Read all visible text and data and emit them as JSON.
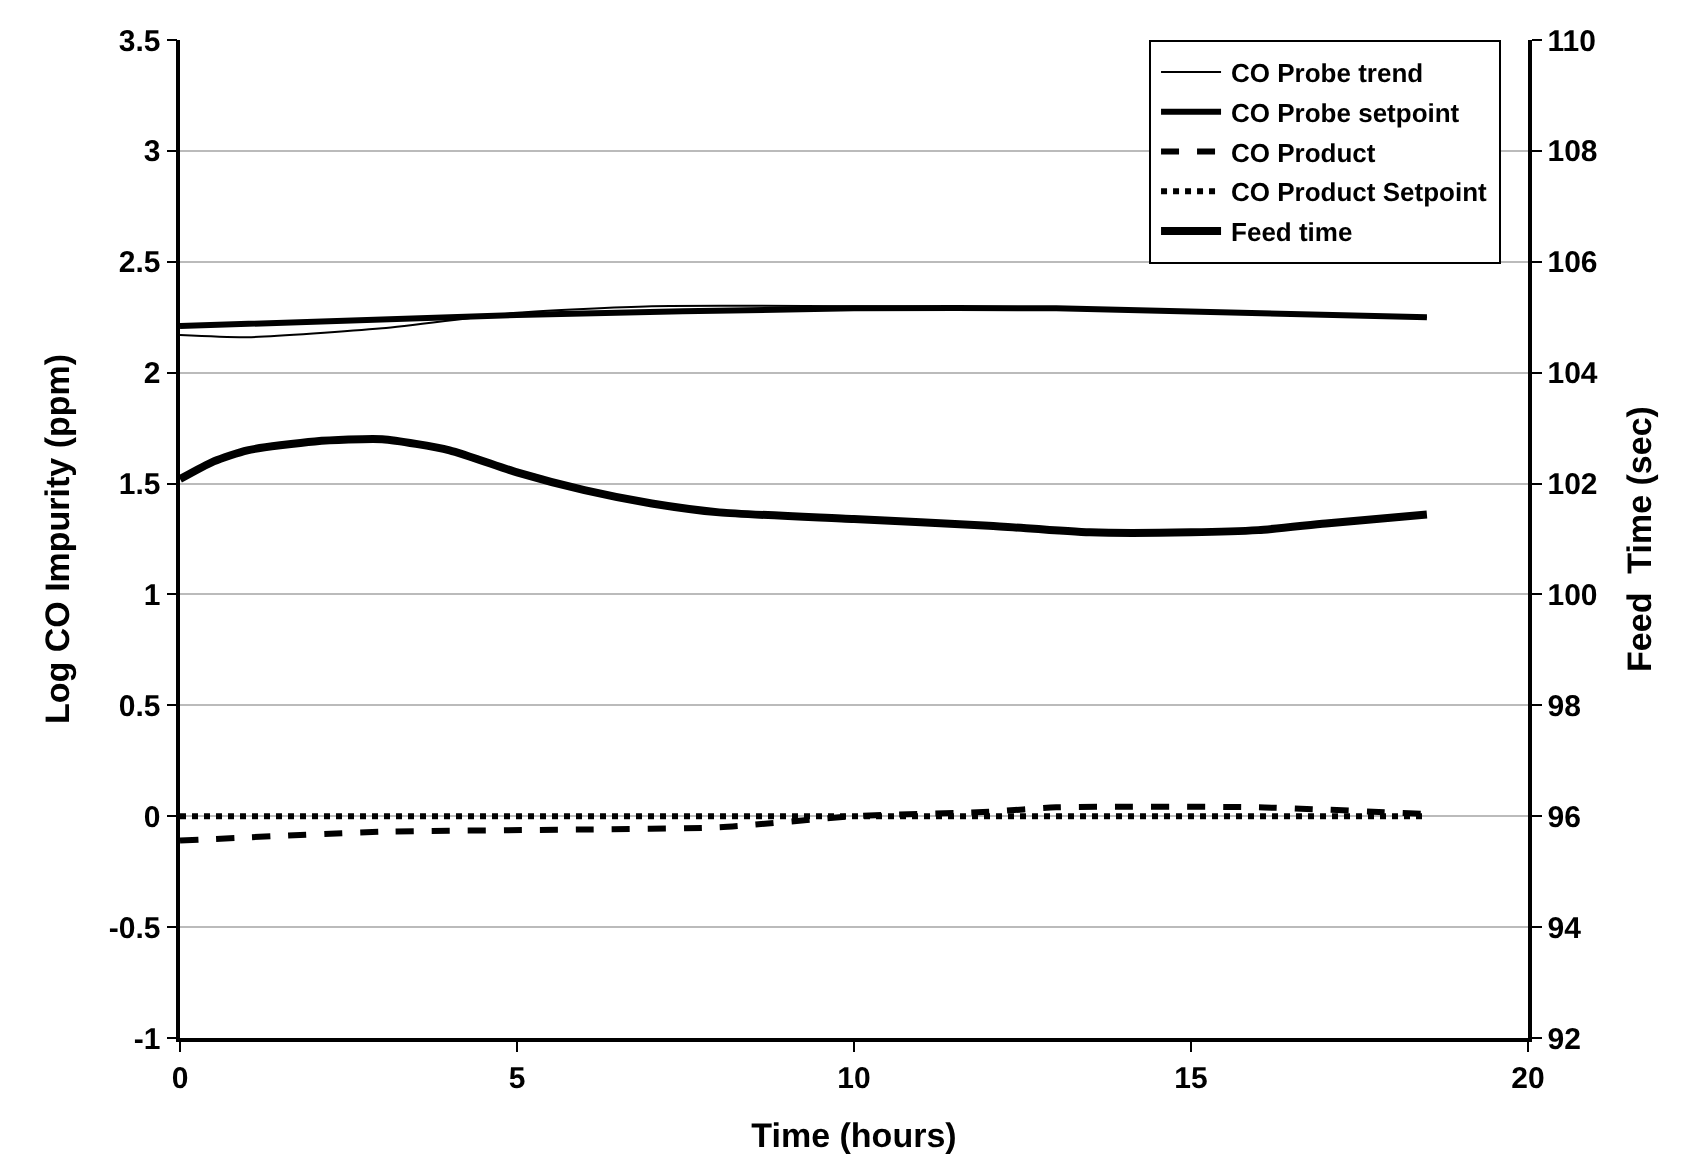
{
  "chart_data": {
    "type": "line",
    "xlabel": "Time (hours)",
    "ylabel": "Log CO Impurity (ppm)",
    "y2label": "Feed  Time (sec)",
    "xlim": [
      0,
      20
    ],
    "xticks": [
      0,
      5,
      10,
      15,
      20
    ],
    "ylim": [
      -1,
      3.5
    ],
    "yticks": [
      -1,
      -0.5,
      0,
      0.5,
      1,
      1.5,
      2,
      2.5,
      3,
      3.5
    ],
    "y2lim": [
      92,
      110
    ],
    "y2ticks": [
      92,
      94,
      96,
      98,
      100,
      102,
      104,
      106,
      108,
      110
    ],
    "grid": "y",
    "legend": "top right",
    "marker": "none",
    "series": [
      {
        "name": "CO Probe trend",
        "color": "#000000",
        "line_style": "solid",
        "x": [
          0,
          1,
          3,
          5,
          7,
          10,
          13,
          18.5
        ],
        "values": [
          2.17,
          2.16,
          2.2,
          2.27,
          2.3,
          2.3,
          2.29,
          2.25
        ]
      },
      {
        "name": "CO Probe setpoint",
        "color": "#000000",
        "line_style": "solid",
        "x": [
          0,
          5,
          10,
          13,
          18.5
        ],
        "values": [
          2.21,
          2.26,
          2.29,
          2.29,
          2.25
        ]
      },
      {
        "name": "CO Product",
        "color": "#000000",
        "line_style": "dashed",
        "x": [
          0,
          3,
          6,
          8,
          10,
          12,
          13,
          16,
          18.5
        ],
        "values": [
          -0.11,
          -0.07,
          -0.06,
          -0.05,
          0,
          0.02,
          0.04,
          0.04,
          0.01
        ]
      },
      {
        "name": "CO Product Setpoint",
        "color": "#000000",
        "line_style": "dotted",
        "x": [
          0,
          18.5
        ],
        "values": [
          0,
          0
        ]
      },
      {
        "name": "Feed time",
        "color": "#000000",
        "line_style": "solid",
        "axis": "y2",
        "x": [
          0,
          0.5,
          1,
          2,
          3,
          4,
          5,
          6,
          7,
          8,
          10,
          12,
          13.5,
          15,
          16,
          17,
          18.5
        ],
        "values": [
          102.08,
          102.4,
          102.6,
          102.76,
          102.8,
          102.6,
          102.2,
          101.88,
          101.64,
          101.48,
          101.36,
          101.24,
          101.12,
          101.12,
          101.16,
          101.28,
          101.44
        ]
      }
    ]
  }
}
